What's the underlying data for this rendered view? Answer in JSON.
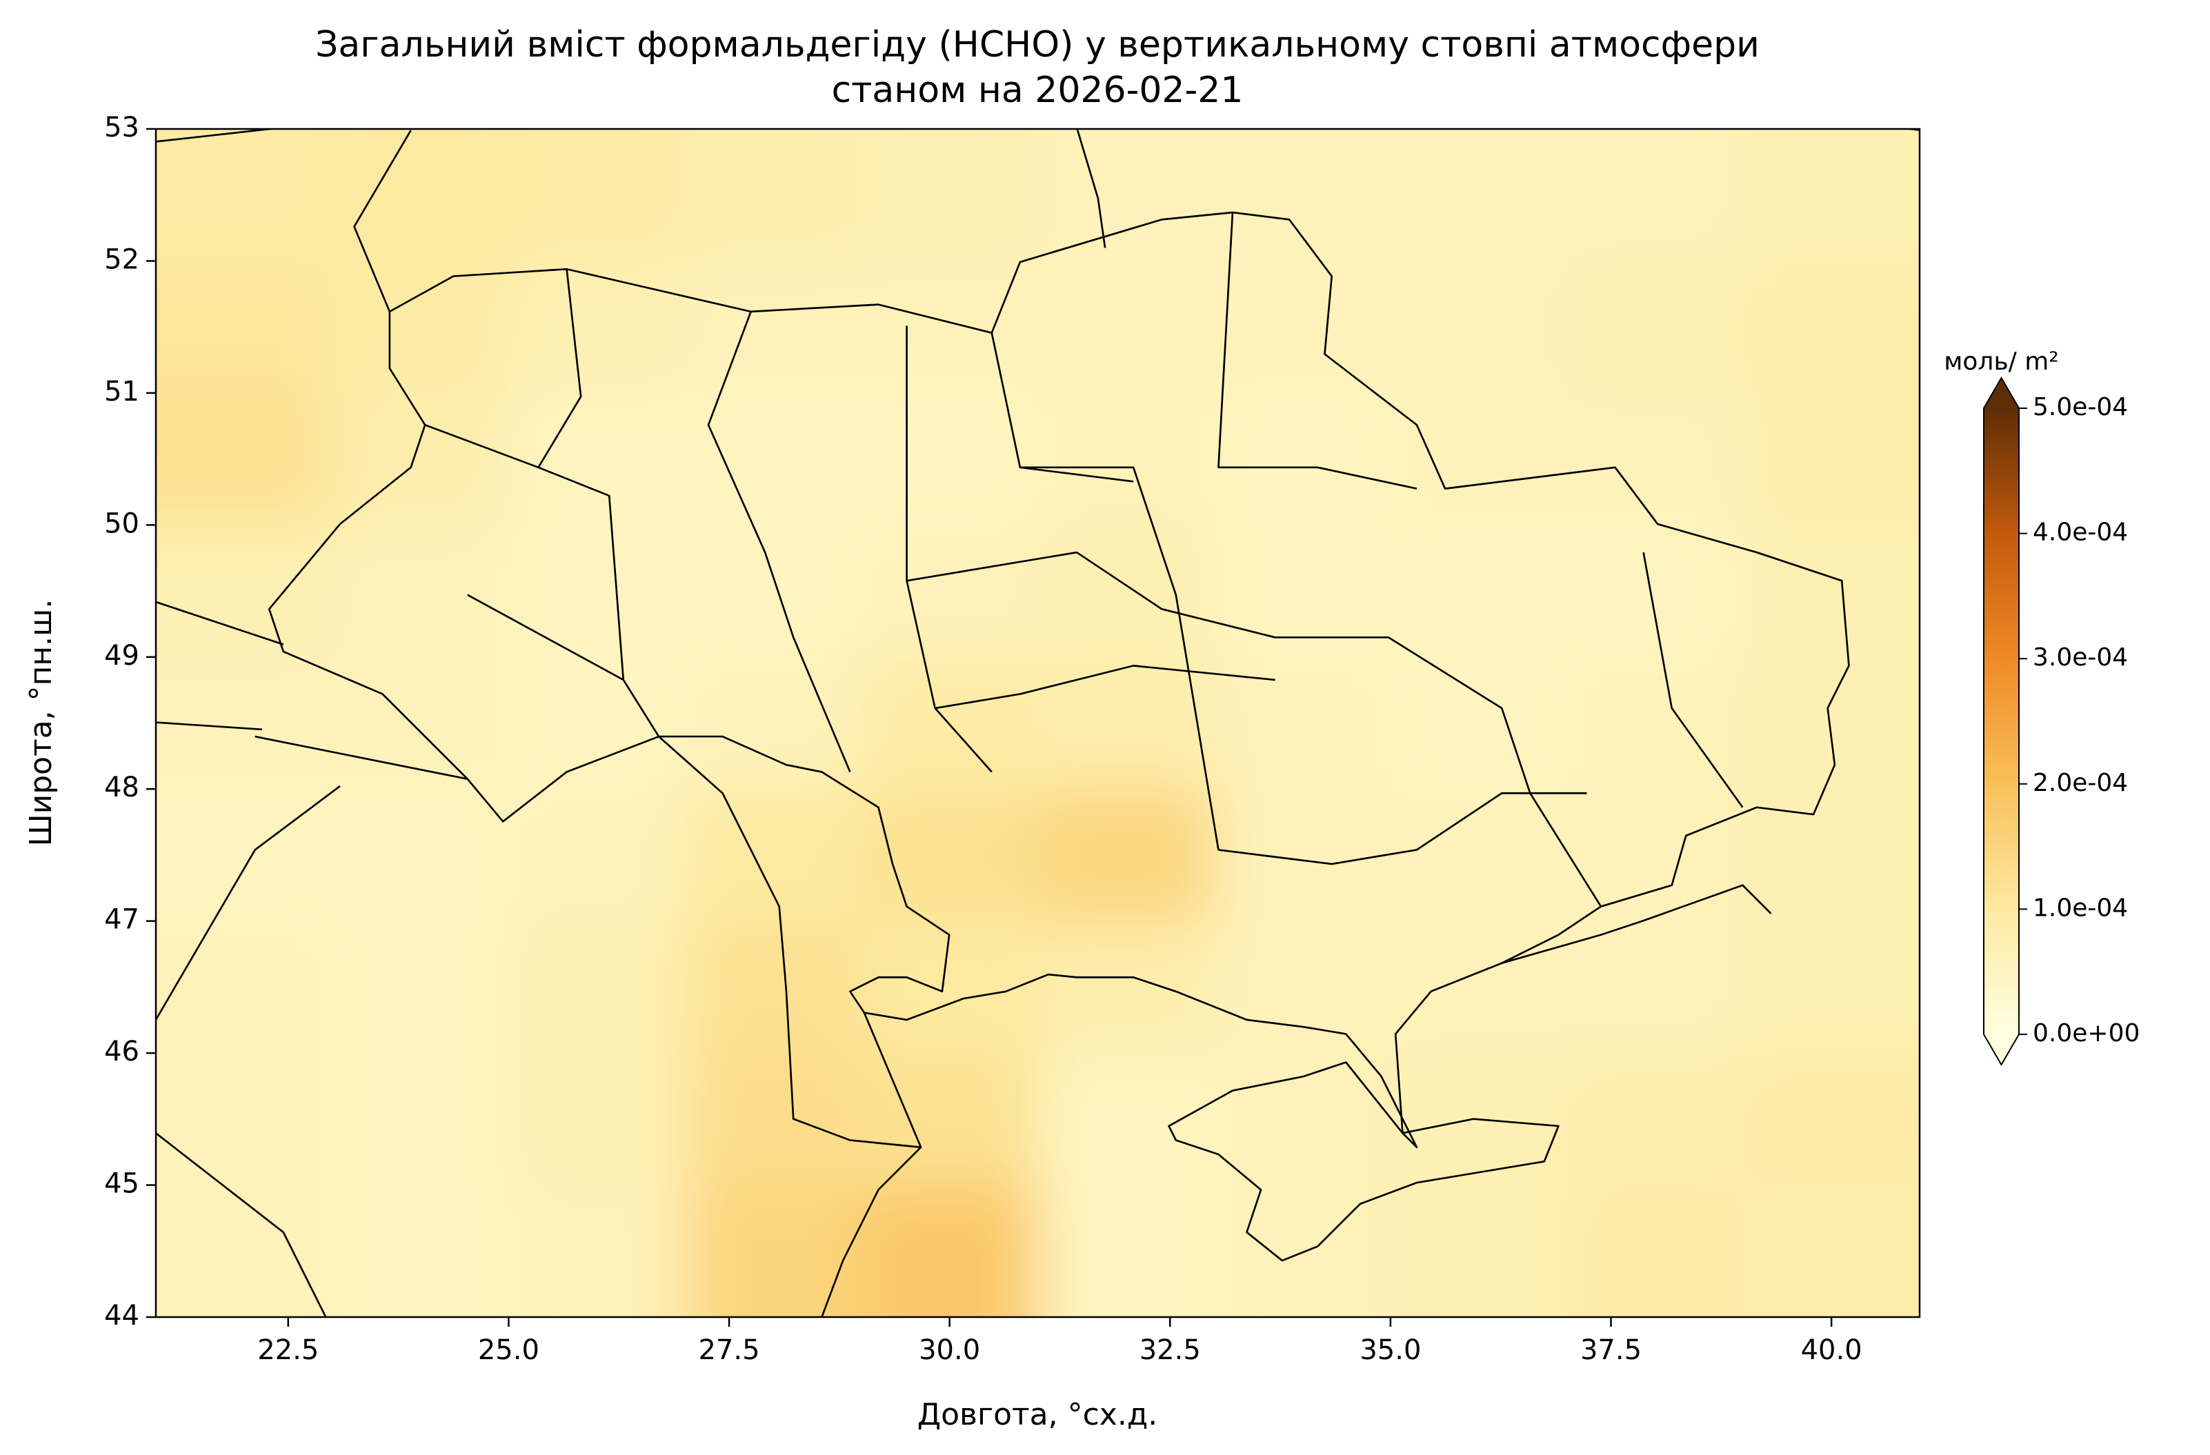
{
  "chart_data": {
    "type": "contour-map",
    "title": "Загальний вміст формальдегіду (HCHO) у вертикальному стовпі атмосфери",
    "subtitle": "станом на 2026-02-21",
    "x_label": "Довгота, °сх.д.",
    "y_label": "Широта, °пн.ш.",
    "xlim": [
      21,
      41
    ],
    "ylim": [
      44,
      53
    ],
    "xticks": [
      22.5,
      {
        "value": 25,
        "label": "25.0"
      },
      27.5,
      {
        "value": 30,
        "label": "30.0"
      },
      32.5,
      {
        "value": 35,
        "label": "35.0"
      },
      37.5,
      {
        "value": 40,
        "label": "40.0"
      }
    ],
    "yticks": [
      44,
      45,
      46,
      47,
      48,
      49,
      50,
      51,
      52,
      53
    ],
    "x": [
      22,
      24,
      26,
      28,
      30,
      32,
      34,
      36,
      38,
      40
    ],
    "y": [
      44.5,
      45.5,
      46.5,
      47.5,
      48.5,
      49.5,
      50.5,
      51.5,
      52.5
    ],
    "z": [
      [
        6e-05,
        5e-05,
        6e-05,
        0.00015,
        0.00018,
        5e-05,
        6e-05,
        7e-05,
        9e-05,
        8e-05
      ],
      [
        6e-05,
        5e-05,
        7e-05,
        0.00013,
        0.00012,
        5e-05,
        6e-05,
        7e-05,
        8e-05,
        9e-05
      ],
      [
        6e-05,
        5e-05,
        7e-05,
        0.00012,
        0.0001,
        8e-05,
        6e-05,
        6e-05,
        6e-05,
        7e-05
      ],
      [
        5e-05,
        5e-05,
        6e-05,
        0.0001,
        0.00012,
        0.00015,
        6e-05,
        6e-05,
        6e-05,
        7e-05
      ],
      [
        6e-05,
        6e-05,
        5e-05,
        6e-05,
        9e-05,
        8e-05,
        6e-05,
        5e-05,
        6e-05,
        7e-05
      ],
      [
        7e-05,
        6e-05,
        5e-05,
        5e-05,
        6e-05,
        7e-05,
        5e-05,
        5e-05,
        5e-05,
        7e-05
      ],
      [
        0.00012,
        8e-05,
        5e-05,
        5e-05,
        5e-05,
        6e-05,
        5e-05,
        6e-05,
        6e-05,
        8e-05
      ],
      [
        0.00011,
        9e-05,
        7e-05,
        6e-05,
        6e-05,
        6e-05,
        6e-05,
        6e-05,
        7e-05,
        8e-05
      ],
      [
        9e-05,
        0.0001,
        9e-05,
        8e-05,
        7e-05,
        6e-05,
        6e-05,
        6e-05,
        6e-05,
        7e-05
      ]
    ],
    "colorbar": {
      "label": "моль/ m²",
      "lim": [
        0,
        0.0005
      ],
      "ticks": [
        {
          "value": 0,
          "label": "0.0e+00"
        },
        {
          "value": 0.0001,
          "label": "1.0e-04"
        },
        {
          "value": 0.0002,
          "label": "2.0e-04"
        },
        {
          "value": 0.0003,
          "label": "3.0e-04"
        },
        {
          "value": 0.0004,
          "label": "4.0e-04"
        },
        {
          "value": 0.0005,
          "label": "5.0e-04"
        }
      ],
      "colors": [
        "#ffffe0",
        "#fde9a0",
        "#f9c05a",
        "#ef8a25",
        "#c25a0c",
        "#5e2e06"
      ]
    }
  }
}
